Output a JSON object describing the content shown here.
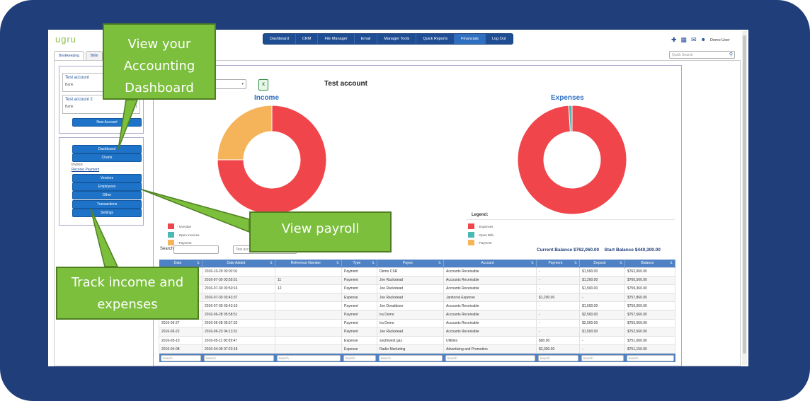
{
  "app": {
    "logo": "ugru"
  },
  "topnav": [
    "Dashboard",
    "CRM",
    "File Manager",
    "Email",
    "Manager Tools",
    "Quick Reports",
    "Financials",
    "Log Out"
  ],
  "header": {
    "user_label": "Demo User",
    "icons": [
      "add-user-icon",
      "calendar-icon",
      "envelope-icon",
      "user-icon"
    ]
  },
  "tabs": [
    "Bookkeeping",
    "Billin"
  ],
  "quick_search": {
    "placeholder": "Quick Search"
  },
  "accounts": [
    {
      "name": "Test account",
      "type": "Bank",
      "balance": ""
    },
    {
      "name": "Test account 2",
      "type": "Bank",
      "balance": "$1"
    }
  ],
  "sidebar": {
    "new_account": "New Account",
    "dashboard": "Dashboard",
    "charts": "Charts",
    "invoice": "Invoice",
    "receive_payment": "Receive Payment",
    "vendors": "Vendors",
    "employees": "Employees",
    "other": "Other",
    "transactions": "Transactions",
    "settings": "Settings"
  },
  "main": {
    "account_title": "Test account",
    "income_title": "Income",
    "expenses_title": "Expenses",
    "legend_title": "Legend:",
    "income_legend": [
      "- Overdue",
      "- Open Invoices",
      "- Payment"
    ],
    "expense_legend": [
      "- Expenses",
      "- Open Bills",
      "- Payment"
    ],
    "search_label": "Search:",
    "filter_text": "Test acc",
    "current_balance": "Current Balance $762,060.00",
    "start_balance": "Start Balance $440,300.00"
  },
  "colors": {
    "red": "#f0454a",
    "teal": "#4bb8b4",
    "orange": "#f6b45a",
    "navy": "#1f3e7a",
    "green_callout": "#7bbf3c"
  },
  "chart_data": [
    {
      "type": "pie",
      "title": "Income",
      "labels": [
        "- Overdue",
        "- Open Invoices",
        "- Payment"
      ],
      "values": [
        75,
        0,
        25
      ]
    },
    {
      "type": "pie",
      "title": "Expenses",
      "labels": [
        "- Expenses",
        "- Open Bills",
        "- Payment"
      ],
      "values": [
        99,
        1,
        0
      ]
    }
  ],
  "table": {
    "columns": [
      "Date",
      "Date Added",
      "Reference Number",
      "Type",
      "Payee",
      "Account",
      "Payment",
      "Deposit",
      "Balance"
    ],
    "footer_placeholder": "Search",
    "rows": [
      [
        "",
        "2016-10-29 03:02:01",
        "",
        "Payment",
        "Demo CSR",
        "Accounts Receivable",
        "-",
        "$1,500.00",
        "$762,060.00"
      ],
      [
        "",
        "2016-07-30 03:55:51",
        "11",
        "Payment",
        "Joe Rackstead",
        "Accounts Receivable",
        "-",
        "$1,200.00",
        "$760,560.00"
      ],
      [
        "",
        "2016-07-30 03:50:16",
        "12",
        "Payment",
        "Joe Rackstead",
        "Accounts Receivable",
        "-",
        "$1,500.00",
        "$759,360.00"
      ],
      [
        "",
        "2016-07-30 03:43:37",
        "",
        "Expense",
        "Joe Rackstead",
        "Janitorial Expense",
        "$1,200.00",
        "-",
        "$757,860.00"
      ],
      [
        "",
        "2016-07-30 03:43:10",
        "",
        "Payment",
        "Joe Donaldson",
        "Accounts Receivable",
        "-",
        "$1,500.00",
        "$759,060.00"
      ],
      [
        "",
        "2016-06-28 05:58:51",
        "",
        "Payment",
        "Ira Demo",
        "Accounts Receivable",
        "-",
        "$2,500.00",
        "$757,560.00"
      ],
      [
        "2016-06-27",
        "2016-06-28 05:57:32",
        "",
        "Payment",
        "Ira Demo",
        "Accounts Receivable",
        "-",
        "$2,500.00",
        "$755,060.00"
      ],
      [
        "2016-06-22",
        "2016-06-23 04:13:31",
        "",
        "Payment",
        "Joe Rackstead",
        "Accounts Receivable",
        "-",
        "$1,500.00",
        "$752,560.00"
      ],
      [
        "2016-05-10",
        "2016-05-11 00:09:47",
        "",
        "Expense",
        "southwest gas",
        "Utilities",
        "$90.00",
        "-",
        "$751,060.00"
      ],
      [
        "2016-04-08",
        "2016-04-09 07:23:18",
        "",
        "Expense",
        "Radio Marketing",
        "Advertising and Promotion",
        "$3,300.00",
        "-",
        "$751,150.00"
      ]
    ]
  },
  "callouts": {
    "accounting": [
      "View your",
      "Accounting",
      "Dashboard"
    ],
    "payroll": [
      "View payroll"
    ],
    "income": [
      "Track income and",
      "expenses"
    ]
  }
}
